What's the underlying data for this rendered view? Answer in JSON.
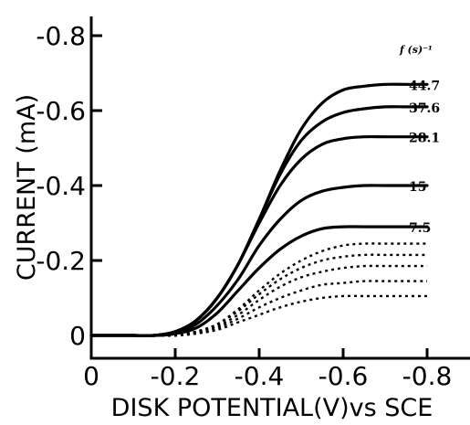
{
  "chart_data": {
    "type": "line",
    "title": "",
    "xlabel": "DISK POTENTIAL(V)vs SCE",
    "ylabel": "CURRENT (mA)",
    "xlim": [
      0,
      -1.0
    ],
    "ylim": [
      0,
      -0.8
    ],
    "x_ticks": [
      {
        "value": 0,
        "label": "0"
      },
      {
        "value": -0.2,
        "label": "-0.2"
      },
      {
        "value": -0.4,
        "label": "-0.4"
      },
      {
        "value": -0.6,
        "label": "-0.6"
      },
      {
        "value": -0.8,
        "label": "-0.8"
      }
    ],
    "y_ticks": [
      {
        "value": 0,
        "label": "0"
      },
      {
        "value": -0.2,
        "label": "-0.2"
      },
      {
        "value": -0.4,
        "label": "-0.4"
      },
      {
        "value": -0.6,
        "label": "-0.6"
      },
      {
        "value": -0.8,
        "label": "-0.8"
      }
    ],
    "legend_title": "f (s)⁻¹",
    "grid": false,
    "x": [
      0,
      -0.05,
      -0.1,
      -0.15,
      -0.2,
      -0.25,
      -0.3,
      -0.35,
      -0.4,
      -0.45,
      -0.5,
      -0.55,
      -0.6,
      -0.65,
      -0.7,
      -0.75,
      -0.8
    ],
    "series": [
      {
        "label": "44.7",
        "style": "solid",
        "values": [
          0,
          0,
          0,
          0,
          -0.01,
          -0.04,
          -0.1,
          -0.19,
          -0.31,
          -0.44,
          -0.55,
          -0.62,
          -0.655,
          -0.665,
          -0.67,
          -0.67,
          -0.67
        ]
      },
      {
        "label": "37.6",
        "style": "solid",
        "values": [
          0,
          0,
          0,
          0,
          -0.01,
          -0.04,
          -0.1,
          -0.19,
          -0.31,
          -0.43,
          -0.52,
          -0.57,
          -0.595,
          -0.605,
          -0.61,
          -0.61,
          -0.61
        ]
      },
      {
        "label": "28.1",
        "style": "solid",
        "values": [
          0,
          0,
          0,
          0,
          -0.01,
          -0.04,
          -0.1,
          -0.19,
          -0.3,
          -0.4,
          -0.47,
          -0.51,
          -0.525,
          -0.53,
          -0.53,
          -0.53,
          -0.53
        ]
      },
      {
        "label": "15",
        "style": "solid",
        "values": [
          0,
          0,
          0,
          0,
          -0.005,
          -0.03,
          -0.08,
          -0.15,
          -0.24,
          -0.31,
          -0.36,
          -0.385,
          -0.395,
          -0.4,
          -0.4,
          -0.4,
          -0.4
        ]
      },
      {
        "label": "7.5",
        "style": "solid",
        "values": [
          0,
          0,
          0,
          0,
          -0.005,
          -0.02,
          -0.06,
          -0.12,
          -0.18,
          -0.23,
          -0.265,
          -0.285,
          -0.29,
          -0.29,
          -0.29,
          -0.29,
          -0.29
        ]
      },
      {
        "label": "",
        "style": "dotted",
        "values": [
          0,
          0,
          0,
          0,
          0,
          -0.01,
          -0.03,
          -0.07,
          -0.12,
          -0.165,
          -0.2,
          -0.225,
          -0.24,
          -0.245,
          -0.245,
          -0.245,
          -0.245
        ]
      },
      {
        "label": "",
        "style": "dotted",
        "values": [
          0,
          0,
          0,
          0,
          0,
          -0.01,
          -0.03,
          -0.065,
          -0.11,
          -0.15,
          -0.18,
          -0.2,
          -0.21,
          -0.215,
          -0.215,
          -0.215,
          -0.215
        ]
      },
      {
        "label": "",
        "style": "dotted",
        "values": [
          0,
          0,
          0,
          0,
          0,
          -0.01,
          -0.025,
          -0.055,
          -0.095,
          -0.13,
          -0.155,
          -0.17,
          -0.18,
          -0.185,
          -0.185,
          -0.185,
          -0.185
        ]
      },
      {
        "label": "",
        "style": "dotted",
        "values": [
          0,
          0,
          0,
          0,
          0,
          -0.005,
          -0.02,
          -0.045,
          -0.075,
          -0.1,
          -0.12,
          -0.135,
          -0.14,
          -0.145,
          -0.145,
          -0.145,
          -0.145
        ]
      },
      {
        "label": "",
        "style": "dotted",
        "values": [
          0,
          0,
          0,
          0,
          0,
          -0.005,
          -0.015,
          -0.035,
          -0.055,
          -0.075,
          -0.09,
          -0.1,
          -0.105,
          -0.105,
          -0.105,
          -0.105,
          -0.105
        ]
      }
    ]
  }
}
